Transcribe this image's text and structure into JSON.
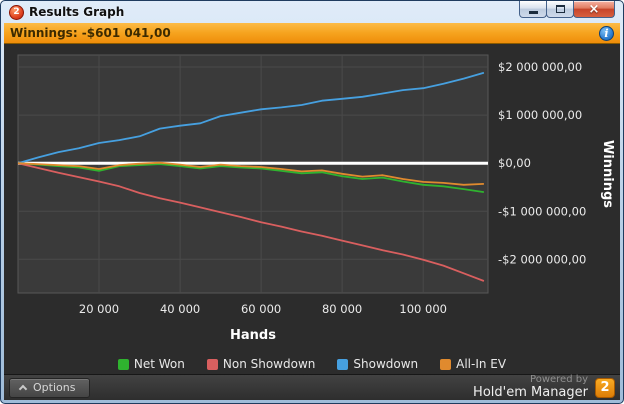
{
  "window": {
    "title": "Results Graph",
    "icon_text": "2",
    "controls": {
      "close_glyph": "×"
    }
  },
  "banner": {
    "winnings_label": "Winnings: -$601 041,00",
    "info_glyph": "i"
  },
  "chart_data": {
    "type": "line",
    "title": "",
    "xlabel": "Hands",
    "ylabel": "Winnings",
    "xlim": [
      0,
      116000
    ],
    "ylim": [
      -2700000,
      2250000
    ],
    "grid": true,
    "legend_position": "bottom",
    "x_ticks": [
      {
        "value": 20000,
        "label": "20 000"
      },
      {
        "value": 40000,
        "label": "40 000"
      },
      {
        "value": 60000,
        "label": "60 000"
      },
      {
        "value": 80000,
        "label": "80 000"
      },
      {
        "value": 100000,
        "label": "100 000"
      }
    ],
    "y_ticks": [
      {
        "value": 2000000,
        "label": "$2 000 000,00"
      },
      {
        "value": 1000000,
        "label": "$1 000 000,00"
      },
      {
        "value": 0,
        "label": "$0,00"
      },
      {
        "value": -1000000,
        "label": "-$1 000 000,00"
      },
      {
        "value": -2000000,
        "label": "-$2 000 000,00"
      }
    ],
    "x": [
      0,
      5000,
      10000,
      15000,
      20000,
      25000,
      30000,
      35000,
      40000,
      45000,
      50000,
      55000,
      60000,
      65000,
      70000,
      75000,
      80000,
      85000,
      90000,
      95000,
      100000,
      105000,
      110000,
      115000
    ],
    "series": [
      {
        "name": "Net Won",
        "color": "#2fb32f",
        "values": [
          0,
          -30000,
          -60000,
          -90000,
          -160000,
          -60000,
          -40000,
          -20000,
          -60000,
          -110000,
          -60000,
          -90000,
          -110000,
          -160000,
          -210000,
          -190000,
          -270000,
          -330000,
          -300000,
          -380000,
          -450000,
          -480000,
          -540000,
          -601041
        ]
      },
      {
        "name": "Non Showdown",
        "color": "#d95f5f",
        "values": [
          0,
          -100000,
          -200000,
          -290000,
          -380000,
          -480000,
          -620000,
          -730000,
          -820000,
          -920000,
          -1020000,
          -1120000,
          -1230000,
          -1320000,
          -1420000,
          -1510000,
          -1610000,
          -1710000,
          -1810000,
          -1900000,
          -2010000,
          -2130000,
          -2290000,
          -2450000
        ]
      },
      {
        "name": "Showdown",
        "color": "#46a0e0",
        "values": [
          0,
          120000,
          230000,
          310000,
          420000,
          480000,
          560000,
          720000,
          780000,
          830000,
          980000,
          1050000,
          1120000,
          1160000,
          1210000,
          1300000,
          1340000,
          1380000,
          1450000,
          1520000,
          1560000,
          1650000,
          1760000,
          1880000
        ]
      },
      {
        "name": "All-In EV",
        "color": "#e08a2e",
        "values": [
          0,
          -20000,
          -40000,
          -60000,
          -120000,
          -40000,
          -10000,
          10000,
          -30000,
          -80000,
          -30000,
          -60000,
          -80000,
          -120000,
          -170000,
          -150000,
          -220000,
          -280000,
          -250000,
          -330000,
          -390000,
          -410000,
          -450000,
          -430000
        ]
      }
    ]
  },
  "footer": {
    "options_label": "Options",
    "powered_by": "Powered by",
    "brand": "Hold'em Manager",
    "brand_badge": "2"
  }
}
